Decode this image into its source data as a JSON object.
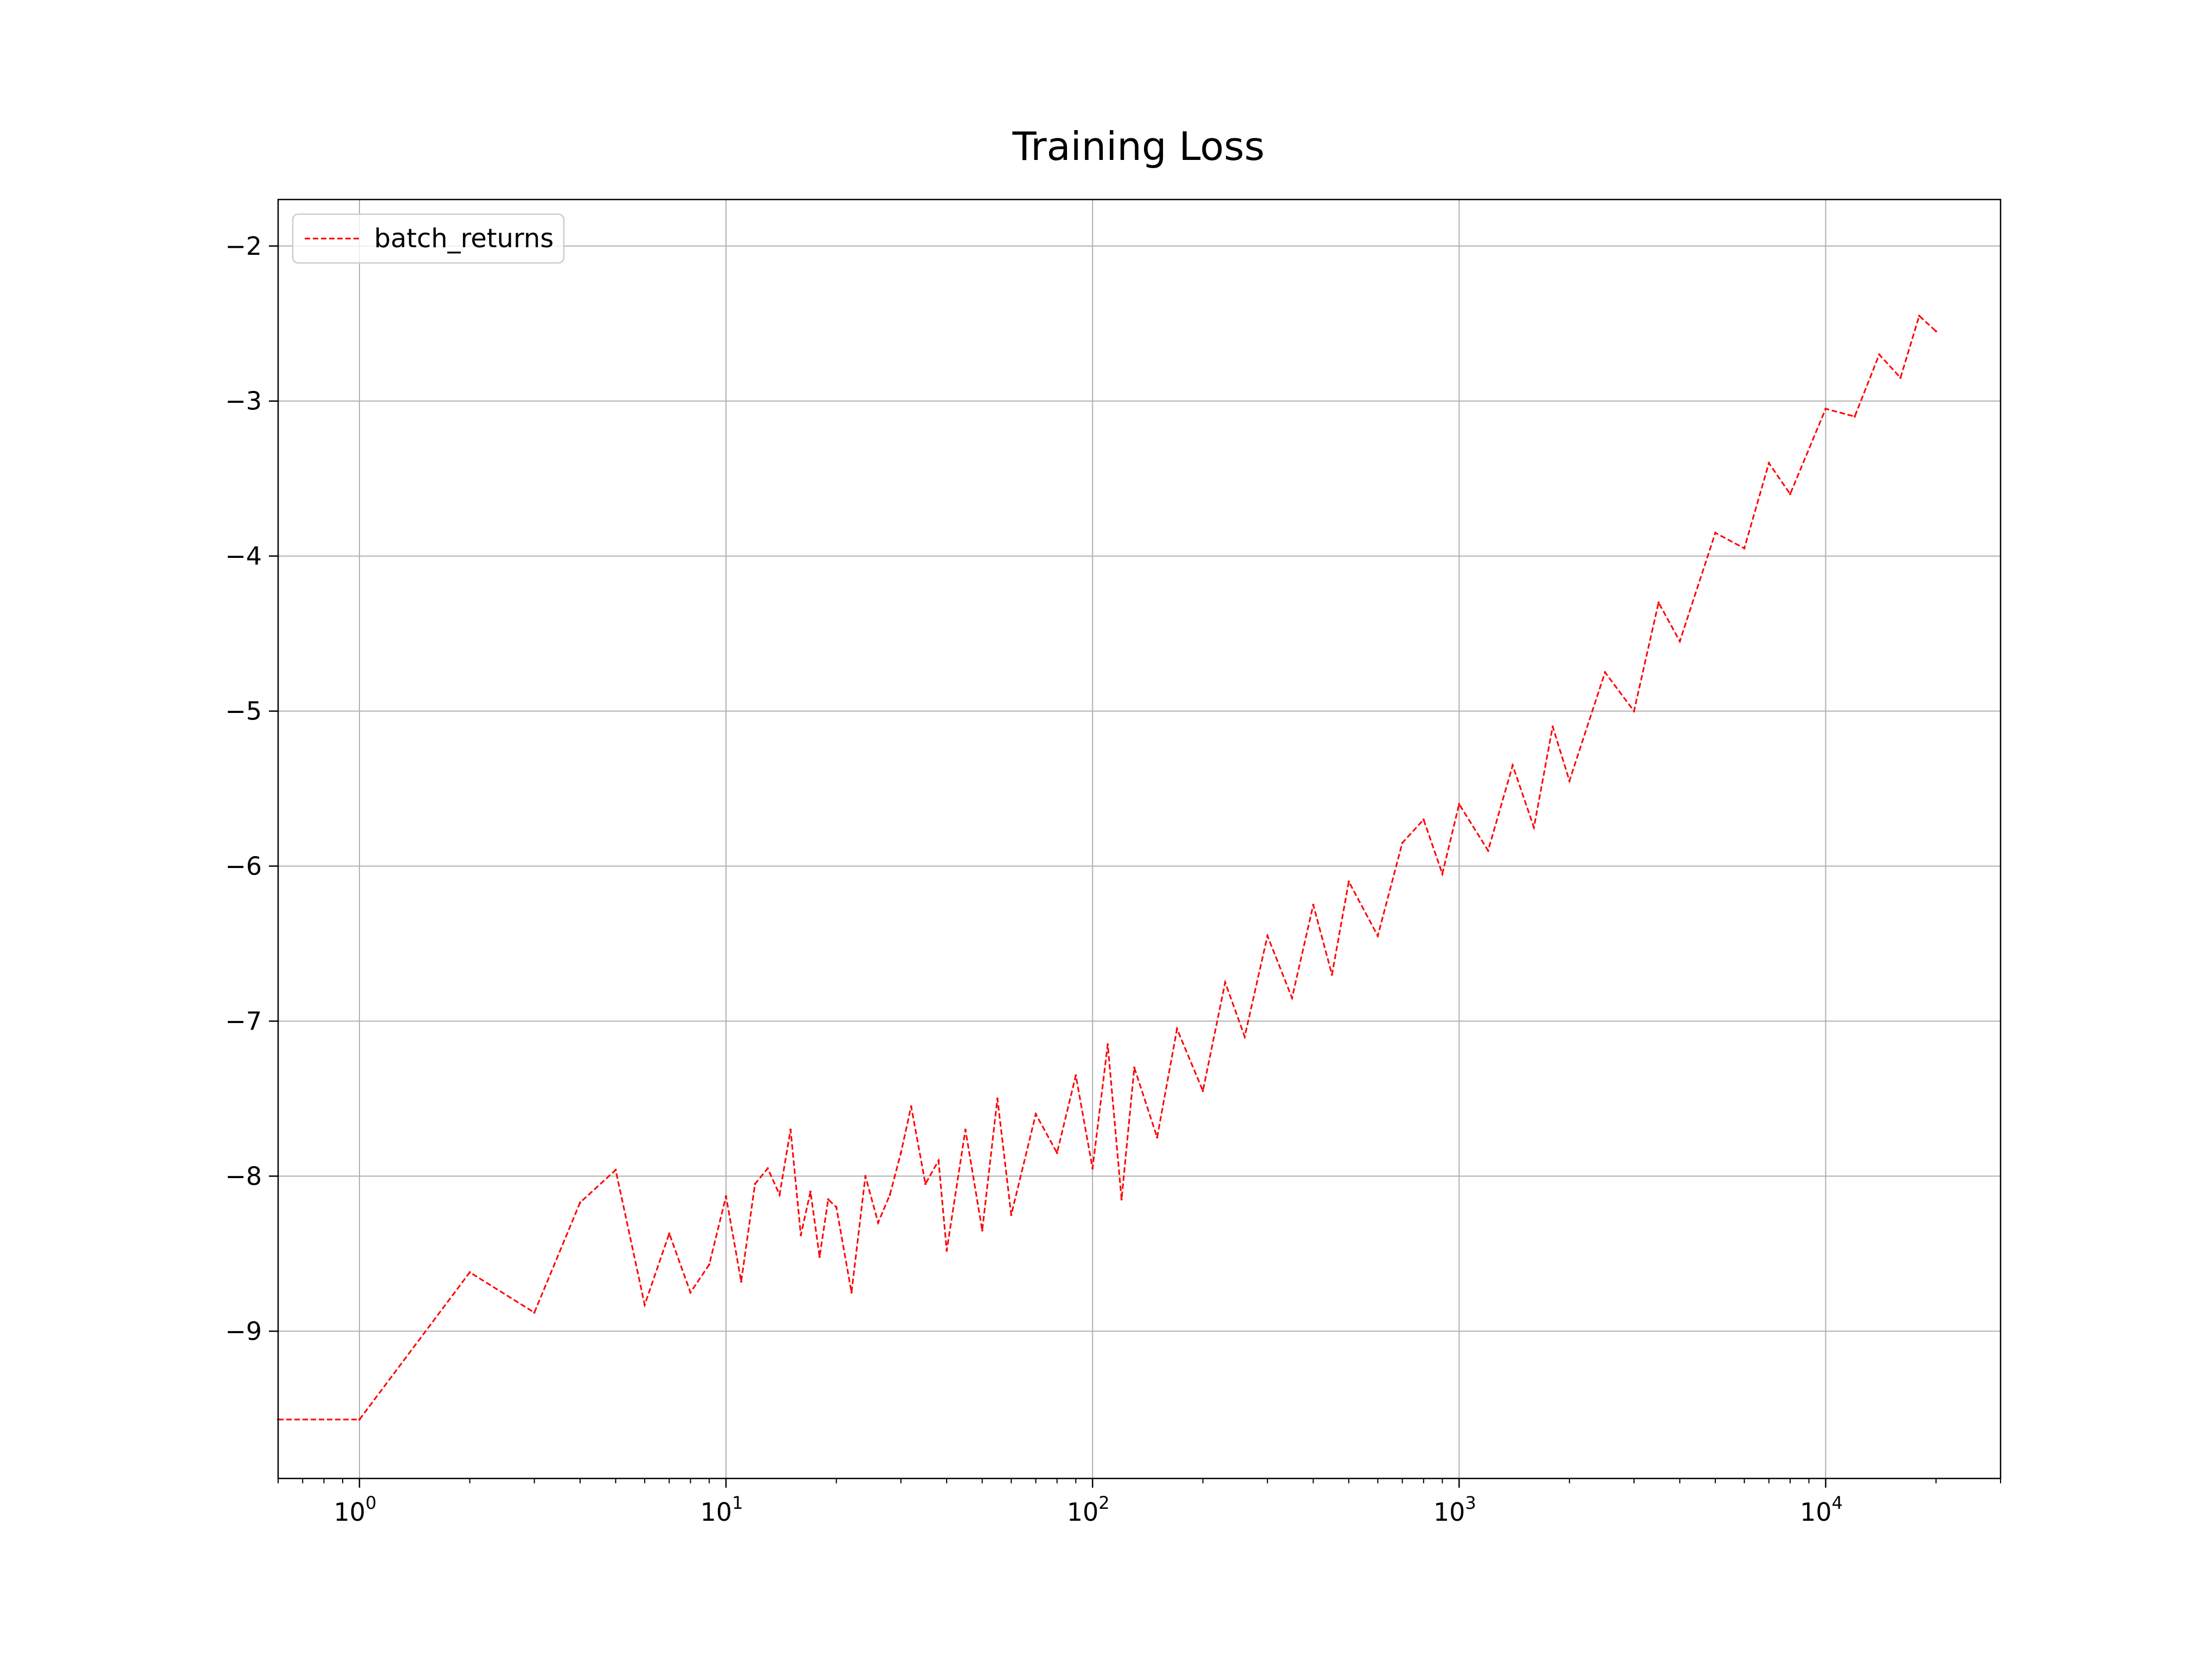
{
  "chart_data": {
    "type": "line",
    "title": "Training Loss",
    "xlabel": "",
    "ylabel": "",
    "x_scale": "log",
    "xlim": [
      0.6,
      30000
    ],
    "ylim": [
      -9.95,
      -1.7
    ],
    "grid": true,
    "legend_position": "top-left",
    "x_ticks": [
      {
        "value": 1,
        "base": "10",
        "exp": "0"
      },
      {
        "value": 10,
        "base": "10",
        "exp": "1"
      },
      {
        "value": 100,
        "base": "10",
        "exp": "2"
      },
      {
        "value": 1000,
        "base": "10",
        "exp": "3"
      },
      {
        "value": 10000,
        "base": "10",
        "exp": "4"
      }
    ],
    "y_ticks": [
      {
        "value": -2,
        "label": "−2"
      },
      {
        "value": -3,
        "label": "−3"
      },
      {
        "value": -4,
        "label": "−4"
      },
      {
        "value": -5,
        "label": "−5"
      },
      {
        "value": -6,
        "label": "−6"
      },
      {
        "value": -7,
        "label": "−7"
      },
      {
        "value": -8,
        "label": "−8"
      },
      {
        "value": -9,
        "label": "−9"
      }
    ],
    "series": [
      {
        "name": "batch_returns",
        "color": "#ff0000",
        "line_style": "dashed",
        "points": [
          [
            0,
            -9.57
          ],
          [
            1,
            -9.57
          ],
          [
            2,
            -8.62
          ],
          [
            3,
            -8.88
          ],
          [
            4,
            -8.17
          ],
          [
            5,
            -7.96
          ],
          [
            6,
            -8.83
          ],
          [
            7,
            -8.37
          ],
          [
            8,
            -8.75
          ],
          [
            9,
            -8.57
          ],
          [
            10,
            -8.13
          ],
          [
            11,
            -8.68
          ],
          [
            12,
            -8.05
          ],
          [
            13,
            -7.95
          ],
          [
            14,
            -8.12
          ],
          [
            15,
            -7.7
          ],
          [
            16,
            -8.38
          ],
          [
            17,
            -8.1
          ],
          [
            18,
            -8.52
          ],
          [
            19,
            -8.15
          ],
          [
            20,
            -8.2
          ],
          [
            22,
            -8.75
          ],
          [
            24,
            -8.0
          ],
          [
            26,
            -8.3
          ],
          [
            28,
            -8.12
          ],
          [
            30,
            -7.85
          ],
          [
            32,
            -7.55
          ],
          [
            35,
            -8.05
          ],
          [
            38,
            -7.9
          ],
          [
            40,
            -8.48
          ],
          [
            45,
            -7.7
          ],
          [
            50,
            -8.35
          ],
          [
            55,
            -7.5
          ],
          [
            60,
            -8.25
          ],
          [
            70,
            -7.6
          ],
          [
            80,
            -7.85
          ],
          [
            90,
            -7.35
          ],
          [
            100,
            -7.95
          ],
          [
            110,
            -7.15
          ],
          [
            120,
            -8.15
          ],
          [
            130,
            -7.3
          ],
          [
            150,
            -7.75
          ],
          [
            170,
            -7.05
          ],
          [
            200,
            -7.45
          ],
          [
            230,
            -6.75
          ],
          [
            260,
            -7.1
          ],
          [
            300,
            -6.45
          ],
          [
            350,
            -6.85
          ],
          [
            400,
            -6.25
          ],
          [
            450,
            -6.7
          ],
          [
            500,
            -6.1
          ],
          [
            600,
            -6.45
          ],
          [
            700,
            -5.85
          ],
          [
            800,
            -5.7
          ],
          [
            900,
            -6.05
          ],
          [
            1000,
            -5.6
          ],
          [
            1200,
            -5.9
          ],
          [
            1400,
            -5.35
          ],
          [
            1600,
            -5.75
          ],
          [
            1800,
            -5.1
          ],
          [
            2000,
            -5.45
          ],
          [
            2500,
            -4.75
          ],
          [
            3000,
            -5.0
          ],
          [
            3500,
            -4.3
          ],
          [
            4000,
            -4.55
          ],
          [
            5000,
            -3.85
          ],
          [
            6000,
            -3.95
          ],
          [
            7000,
            -3.4
          ],
          [
            8000,
            -3.6
          ],
          [
            10000,
            -3.05
          ],
          [
            12000,
            -3.1
          ],
          [
            14000,
            -2.7
          ],
          [
            16000,
            -2.85
          ],
          [
            18000,
            -2.45
          ],
          [
            20000,
            -2.55
          ]
        ]
      }
    ]
  }
}
